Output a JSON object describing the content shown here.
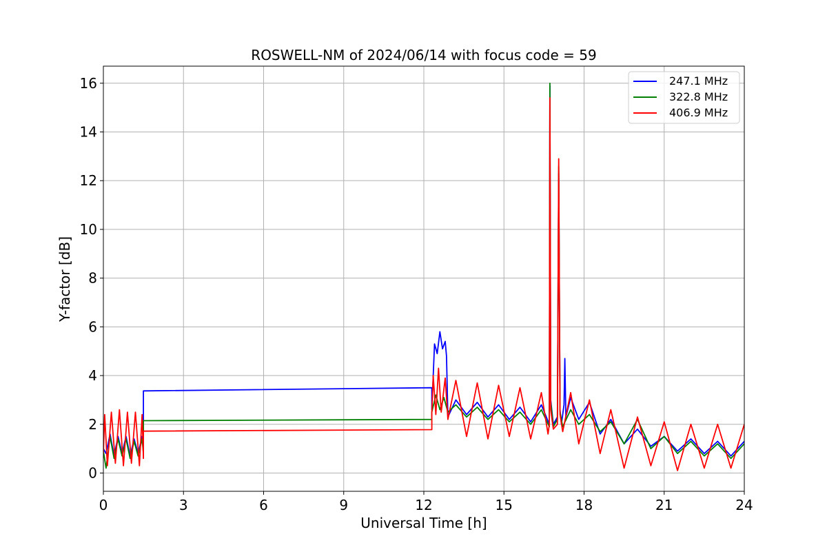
{
  "chart_data": {
    "type": "line",
    "title": "ROSWELL-NM of 2024/06/14 with focus code = 59",
    "xlabel": "Universal Time [h]",
    "ylabel": "Y-factor [dB]",
    "xlim": [
      0,
      24
    ],
    "ylim": [
      -0.75,
      16.7
    ],
    "xticks": [
      0,
      3,
      6,
      9,
      12,
      15,
      18,
      21,
      24
    ],
    "yticks": [
      0,
      2,
      4,
      6,
      8,
      10,
      12,
      14,
      16
    ],
    "grid": true,
    "legend_position": "top-right",
    "series": [
      {
        "name": "247.1 MHz",
        "color": "#0000ff",
        "x": [
          0.0,
          0.1,
          0.25,
          0.4,
          0.55,
          0.7,
          0.85,
          1.0,
          1.15,
          1.3,
          1.45,
          1.5,
          1.5,
          12.3,
          12.3,
          12.4,
          12.5,
          12.6,
          12.7,
          12.8,
          12.85,
          12.9,
          13.2,
          13.6,
          14.0,
          14.4,
          14.8,
          15.2,
          15.6,
          16.0,
          16.4,
          16.7,
          16.72,
          16.75,
          16.85,
          17.0,
          17.05,
          17.1,
          17.15,
          17.25,
          17.28,
          17.32,
          17.5,
          17.8,
          18.2,
          18.6,
          19.0,
          19.5,
          20.0,
          20.5,
          21.0,
          21.5,
          22.0,
          22.5,
          23.0,
          23.5,
          24.0
        ],
        "y": [
          1.0,
          0.8,
          1.6,
          0.7,
          1.5,
          0.8,
          1.5,
          0.7,
          1.4,
          0.8,
          1.5,
          0.9,
          3.37,
          3.5,
          2.6,
          5.3,
          4.9,
          5.8,
          5.1,
          5.4,
          4.8,
          2.3,
          3.0,
          2.4,
          2.9,
          2.3,
          2.8,
          2.2,
          2.7,
          2.1,
          2.8,
          2.0,
          15.9,
          3.0,
          2.0,
          2.3,
          12.3,
          2.6,
          2.0,
          2.8,
          4.7,
          2.3,
          3.1,
          2.2,
          2.9,
          1.6,
          2.2,
          1.2,
          1.8,
          1.1,
          1.5,
          0.9,
          1.4,
          0.8,
          1.3,
          0.7,
          1.3
        ]
      },
      {
        "name": "322.8 MHz",
        "color": "#008000",
        "x": [
          0.0,
          0.1,
          0.25,
          0.4,
          0.55,
          0.7,
          0.85,
          1.0,
          1.15,
          1.3,
          1.45,
          1.5,
          1.5,
          12.3,
          12.3,
          12.45,
          12.6,
          12.75,
          12.9,
          13.2,
          13.6,
          14.0,
          14.4,
          14.8,
          15.2,
          15.6,
          16.0,
          16.4,
          16.7,
          16.72,
          16.75,
          16.85,
          17.0,
          17.05,
          17.1,
          17.2,
          17.5,
          17.8,
          18.2,
          18.6,
          19.0,
          19.5,
          20.0,
          20.5,
          21.0,
          21.5,
          22.0,
          22.5,
          23.0,
          23.5,
          24.0
        ],
        "y": [
          0.9,
          0.2,
          1.5,
          0.6,
          1.4,
          0.7,
          1.4,
          0.6,
          1.3,
          0.7,
          1.4,
          0.8,
          2.15,
          2.2,
          2.5,
          3.2,
          2.6,
          3.1,
          2.5,
          2.8,
          2.3,
          2.7,
          2.2,
          2.6,
          2.1,
          2.5,
          2.0,
          2.6,
          1.9,
          16.0,
          2.9,
          1.9,
          2.2,
          12.6,
          2.5,
          1.9,
          2.6,
          2.0,
          2.4,
          1.7,
          2.1,
          1.2,
          2.2,
          1.0,
          1.5,
          0.8,
          1.3,
          0.7,
          1.2,
          0.6,
          1.2
        ]
      },
      {
        "name": "406.9 MHz",
        "color": "#ff0000",
        "x": [
          0.0,
          0.05,
          0.15,
          0.3,
          0.45,
          0.6,
          0.75,
          0.9,
          1.05,
          1.2,
          1.35,
          1.45,
          1.5,
          1.5,
          12.3,
          12.3,
          12.35,
          12.45,
          12.55,
          12.65,
          12.8,
          12.9,
          13.2,
          13.6,
          14.0,
          14.4,
          14.8,
          15.2,
          15.6,
          16.0,
          16.4,
          16.65,
          16.7,
          16.72,
          16.75,
          16.85,
          17.0,
          17.05,
          17.1,
          17.2,
          17.5,
          17.8,
          18.2,
          18.6,
          19.0,
          19.5,
          20.0,
          20.5,
          21.0,
          21.5,
          22.0,
          22.5,
          23.0,
          23.5,
          24.0
        ],
        "y": [
          0.8,
          2.4,
          0.3,
          2.5,
          0.4,
          2.6,
          0.3,
          2.5,
          0.4,
          2.5,
          0.3,
          2.4,
          0.6,
          1.72,
          1.78,
          2.5,
          4.0,
          2.4,
          4.3,
          2.5,
          3.9,
          2.2,
          3.8,
          1.5,
          3.7,
          1.4,
          3.6,
          1.5,
          3.5,
          1.4,
          3.3,
          1.6,
          2.0,
          15.4,
          2.6,
          1.8,
          2.0,
          12.9,
          2.4,
          1.7,
          3.3,
          1.2,
          3.0,
          0.8,
          2.6,
          0.2,
          2.3,
          0.3,
          2.1,
          0.1,
          2.0,
          0.2,
          2.0,
          0.2,
          2.0
        ]
      }
    ]
  }
}
